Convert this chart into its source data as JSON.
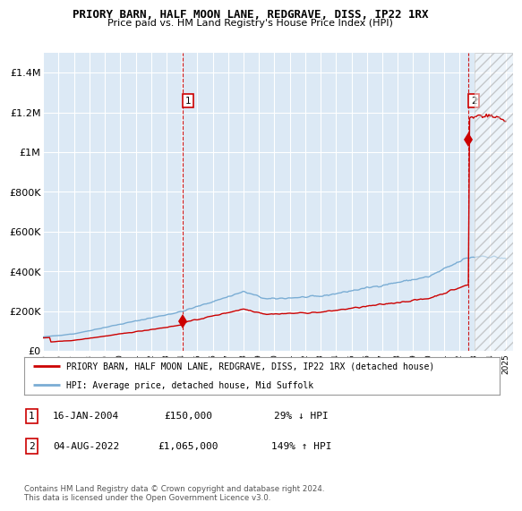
{
  "title": "PRIORY BARN, HALF MOON LANE, REDGRAVE, DISS, IP22 1RX",
  "subtitle": "Price paid vs. HM Land Registry's House Price Index (HPI)",
  "hpi_color": "#7aadd4",
  "price_color": "#cc0000",
  "background_color": "#dce9f5",
  "ylim": [
    0,
    1500000
  ],
  "yticks": [
    0,
    200000,
    400000,
    600000,
    800000,
    1000000,
    1200000,
    1400000
  ],
  "ytick_labels": [
    "£0",
    "£200K",
    "£400K",
    "£600K",
    "£800K",
    "£1M",
    "£1.2M",
    "£1.4M"
  ],
  "transactions": [
    {
      "date_num": 2004.04,
      "price": 150000,
      "label": "1"
    },
    {
      "date_num": 2022.59,
      "price": 1065000,
      "label": "2"
    }
  ],
  "legend_label_red": "PRIORY BARN, HALF MOON LANE, REDGRAVE, DISS, IP22 1RX (detached house)",
  "legend_label_blue": "HPI: Average price, detached house, Mid Suffolk",
  "table_rows": [
    {
      "num": "1",
      "date": "16-JAN-2004",
      "price": "£150,000",
      "hpi": "29% ↓ HPI"
    },
    {
      "num": "2",
      "date": "04-AUG-2022",
      "price": "£1,065,000",
      "hpi": "149% ↑ HPI"
    }
  ],
  "footer": "Contains HM Land Registry data © Crown copyright and database right 2024.\nThis data is licensed under the Open Government Licence v3.0.",
  "xmin": 1995,
  "xmax": 2025.5,
  "hatch_start": 2023.0
}
